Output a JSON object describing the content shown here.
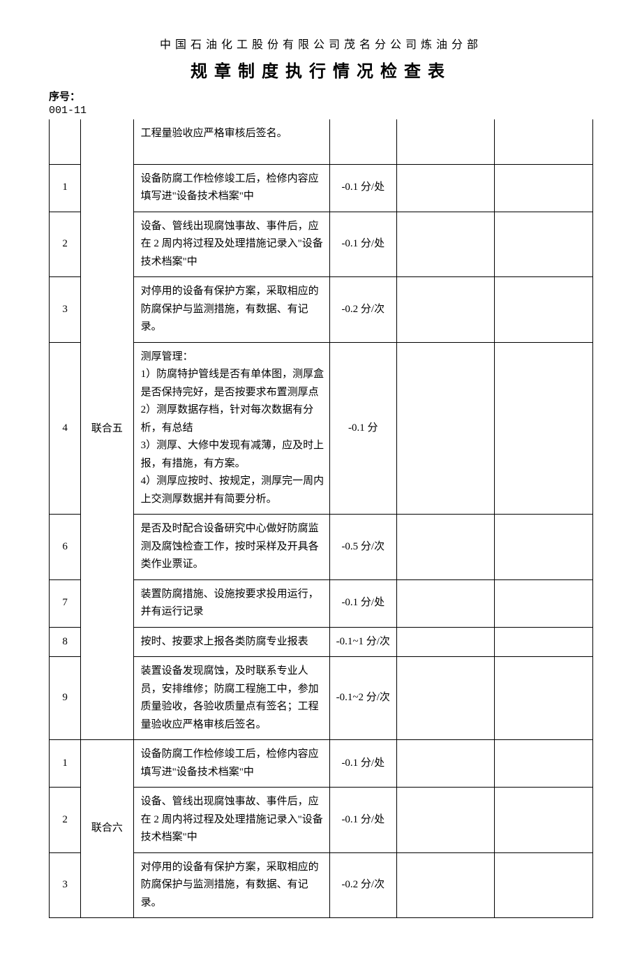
{
  "header": {
    "organization": "中国石油化工股份有限公司茂名分公司炼油分部",
    "title": "规章制度执行情况检查表",
    "serial_label": "序号：",
    "serial_value": "001-11"
  },
  "groups": [
    {
      "name": "联合五",
      "lead_row": {
        "num": "",
        "desc": "工程量验收应严格审核后签名。",
        "score": ""
      },
      "rows": [
        {
          "num": "1",
          "desc": "设备防腐工作检修竣工后，检修内容应填写进\"设备技术档案\"中",
          "score": "-0.1 分/处"
        },
        {
          "num": "2",
          "desc": "设备、管线出现腐蚀事故、事件后，应在 2 周内将过程及处理措施记录入\"设备技术档案\"中",
          "score": "-0.1 分/处"
        },
        {
          "num": "3",
          "desc": "对停用的设备有保护方案，采取相应的防腐保护与监测措施，有数据、有记录。",
          "score": "-0.2 分/次"
        },
        {
          "num": "4",
          "desc": "测厚管理：\n1）防腐特护管线是否有单体图，测厚盒是否保持完好，是否按要求布置测厚点\n2）测厚数据存档，针对每次数据有分析，有总结\n3）测厚、大修中发现有减薄，应及时上报，有措施，有方案。\n4）测厚应按时、按规定，测厚完一周内上交测厚数据并有简要分析。",
          "score": "-0.1 分"
        },
        {
          "num": "6",
          "desc": "是否及时配合设备研究中心做好防腐监测及腐蚀检查工作，按时采样及开具各类作业票证。",
          "score": "-0.5 分/次"
        },
        {
          "num": "7",
          "desc": "装置防腐措施、设施按要求投用运行，并有运行记录",
          "score": "-0.1 分/处"
        },
        {
          "num": "8",
          "desc": "按时、按要求上报各类防腐专业报表",
          "score": "-0.1~1 分/次"
        },
        {
          "num": "9",
          "desc": "装置设备发现腐蚀，及时联系专业人员，安排维修；防腐工程施工中，参加质量验收，各验收质量点有签名；工程量验收应严格审核后签名。",
          "score": "-0.1~2 分/次"
        }
      ]
    },
    {
      "name": "联合六",
      "rows": [
        {
          "num": "1",
          "desc": "设备防腐工作检修竣工后，检修内容应填写进\"设备技术档案\"中",
          "score": "-0.1 分/处"
        },
        {
          "num": "2",
          "desc": "设备、管线出现腐蚀事故、事件后，应在 2 周内将过程及处理措施记录入\"设备技术档案\"中",
          "score": "-0.1 分/处"
        },
        {
          "num": "3",
          "desc": "对停用的设备有保护方案，采取相应的防腐保护与监测措施，有数据、有记录。",
          "score": "-0.2 分/次"
        }
      ]
    }
  ]
}
